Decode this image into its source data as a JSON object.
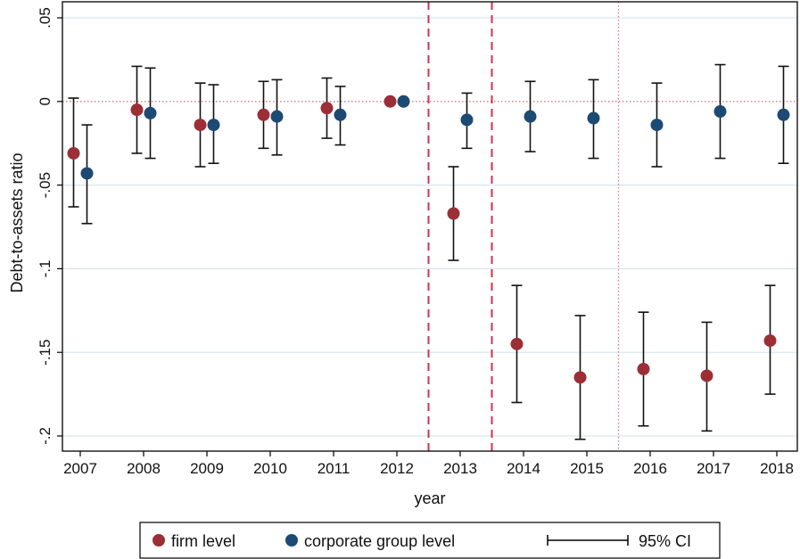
{
  "chart_data": {
    "type": "scatter",
    "x": [
      "2007",
      "2008",
      "2009",
      "2010",
      "2011",
      "2012",
      "2013",
      "2014",
      "2015",
      "2016",
      "2017",
      "2018"
    ],
    "xlabel": "year",
    "ylabel": "Debt-to-assets ratio",
    "ylim": [
      -0.2,
      0.05
    ],
    "yticks": [
      0.05,
      0,
      -0.05,
      -0.1,
      -0.15,
      -0.2
    ],
    "ytick_labels": [
      ".05",
      "0",
      "-.05",
      "-.1",
      "-.15",
      "-.2"
    ],
    "grid": true,
    "legend_position": "bottom",
    "reference_lines": {
      "horizontal_dotted_y": 0,
      "vertical_dashed_between": [
        [
          "2012",
          "2013"
        ],
        [
          "2013",
          "2014"
        ]
      ],
      "vertical_dotted_between": [
        [
          "2015",
          "2016"
        ]
      ]
    },
    "series": [
      {
        "name": "firm level",
        "color": "#9b2f35",
        "values": [
          -0.031,
          -0.005,
          -0.014,
          -0.008,
          -0.004,
          0.0,
          -0.067,
          -0.145,
          -0.165,
          -0.16,
          -0.164,
          -0.143
        ],
        "ci_low": [
          -0.063,
          -0.031,
          -0.039,
          -0.028,
          -0.022,
          0.0,
          -0.095,
          -0.18,
          -0.202,
          -0.194,
          -0.197,
          -0.175
        ],
        "ci_high": [
          0.002,
          0.021,
          0.011,
          0.012,
          0.014,
          0.0,
          -0.039,
          -0.11,
          -0.128,
          -0.126,
          -0.132,
          -0.11
        ]
      },
      {
        "name": "corporate group level",
        "color": "#1c4a72",
        "values": [
          -0.043,
          -0.007,
          -0.014,
          -0.009,
          -0.008,
          0.0,
          -0.011,
          -0.009,
          -0.01,
          -0.014,
          -0.006,
          -0.008
        ],
        "ci_low": [
          -0.073,
          -0.034,
          -0.037,
          -0.032,
          -0.026,
          0.0,
          -0.028,
          -0.03,
          -0.034,
          -0.039,
          -0.034,
          -0.037
        ],
        "ci_high": [
          -0.014,
          0.02,
          0.01,
          0.013,
          0.009,
          0.0,
          0.005,
          0.012,
          0.013,
          0.011,
          0.022,
          0.021
        ]
      }
    ],
    "legend": {
      "items": [
        "firm level",
        "corporate group level"
      ],
      "ci_label": "95% CI"
    }
  }
}
